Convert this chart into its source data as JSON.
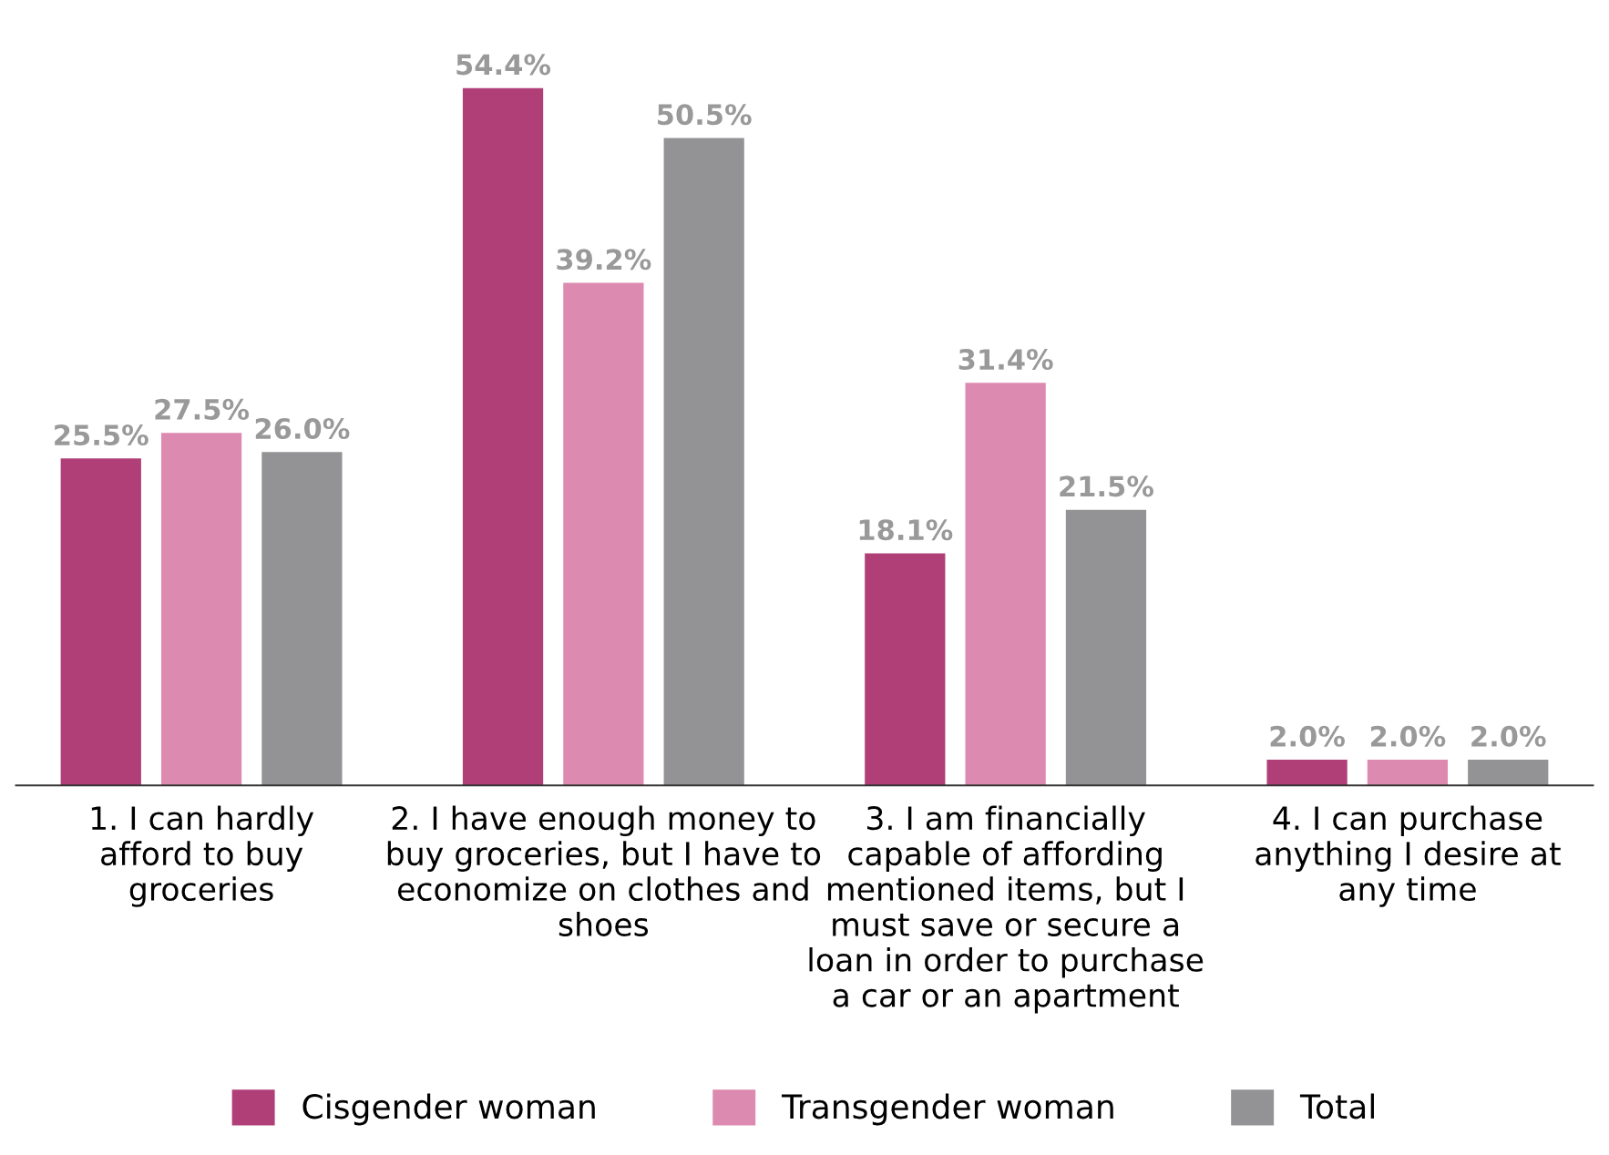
{
  "chart_data": {
    "type": "bar",
    "categories": [
      "1. I can hardly\nafford to buy\ngroceries",
      "2. I have enough money to\nbuy groceries, but I have to\neconomize on clothes and\nshoes",
      "3. I am financially\ncapable of affording\nmentioned items, but I\nmust save or secure a\nloan in order to purchase\na car or an apartment",
      "4. I can purchase\nanything I desire at\nany time"
    ],
    "series": [
      {
        "name": "Cisgender woman",
        "color": "#b03f78",
        "values": [
          25.5,
          54.4,
          18.1,
          2.0
        ],
        "value_labels": [
          "25.5%",
          "54.4%",
          "18.1%",
          "2.0%"
        ]
      },
      {
        "name": "Transgender woman",
        "color": "#dd8ab0",
        "values": [
          27.5,
          39.2,
          31.4,
          2.0
        ],
        "value_labels": [
          "27.5%",
          "39.2%",
          "31.4%",
          "2.0%"
        ]
      },
      {
        "name": "Total",
        "color": "#939396",
        "values": [
          26.0,
          50.5,
          21.5,
          2.0
        ],
        "value_labels": [
          "26.0%",
          "50.5%",
          "21.5%",
          "2.0%"
        ]
      }
    ],
    "legend": "bottom",
    "grid": false
  }
}
